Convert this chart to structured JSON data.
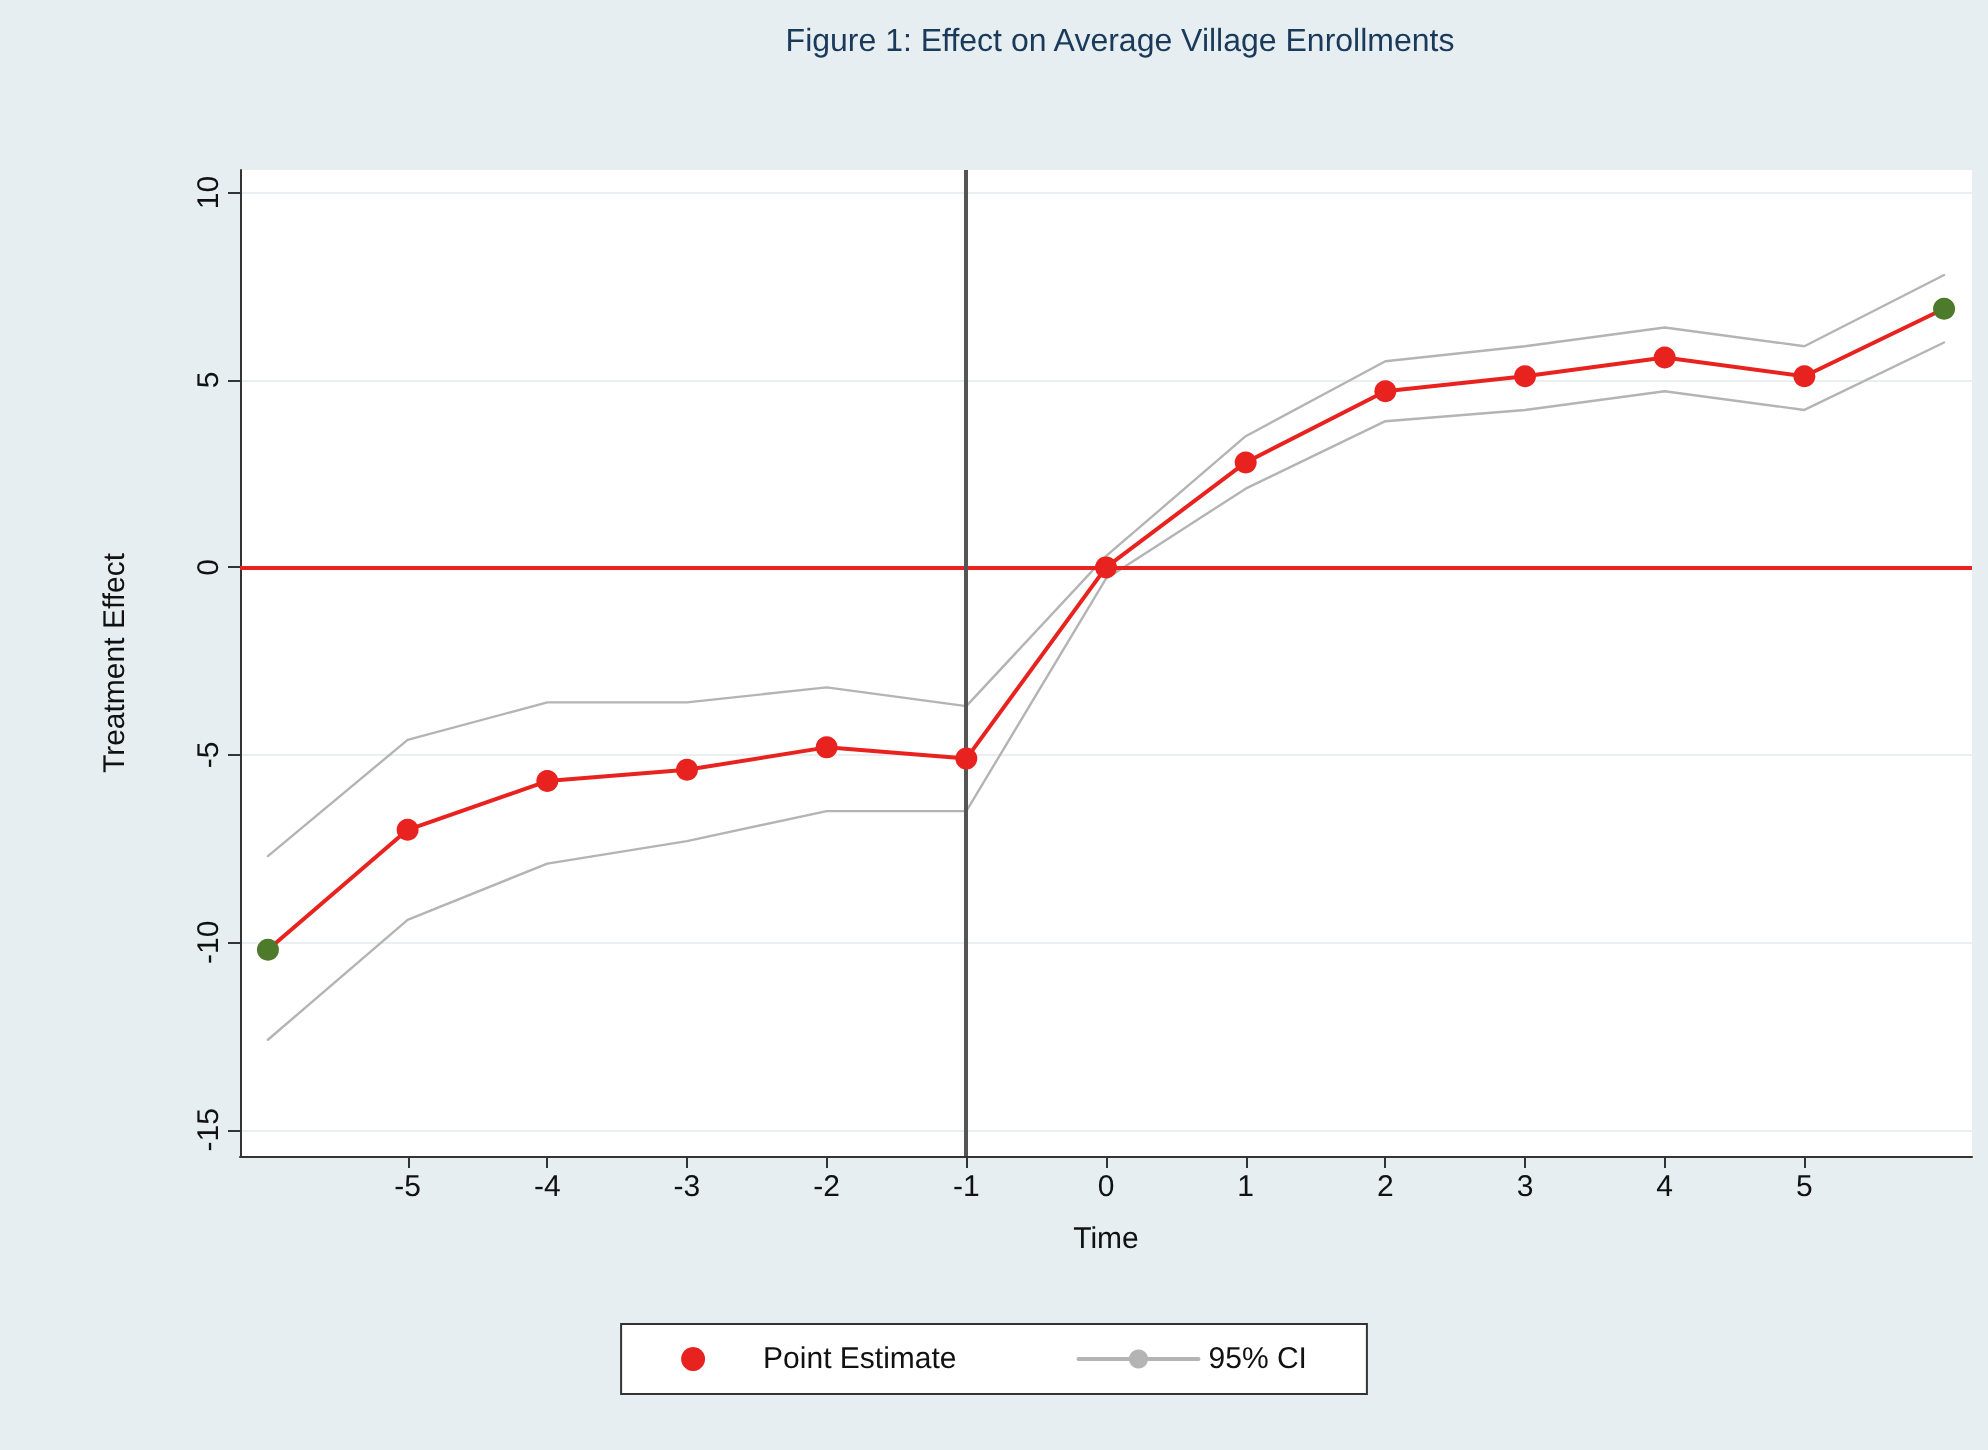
{
  "chart_data": {
    "type": "line",
    "title": "Figure 1: Effect on Average Village Enrollments",
    "xlabel": "Time",
    "ylabel": "Treatment Effect",
    "x": [
      -6,
      -5,
      -4,
      -3,
      -2,
      -1,
      0,
      1,
      2,
      3,
      4,
      5,
      6
    ],
    "series": [
      {
        "name": "Point Estimate",
        "color": "#e8231f",
        "colors": [
          "#4e7a2c",
          "#e8231f",
          "#e8231f",
          "#e8231f",
          "#e8231f",
          "#e8231f",
          "#e8231f",
          "#e8231f",
          "#e8231f",
          "#e8231f",
          "#e8231f",
          "#e8231f",
          "#4e7a2c"
        ],
        "marker": "circle",
        "values": [
          -10.2,
          -7.0,
          -5.7,
          -5.4,
          -4.8,
          -5.1,
          0,
          2.8,
          4.7,
          5.1,
          5.6,
          5.1,
          6.9
        ]
      },
      {
        "name": "95% CI",
        "color": "#b4b4b4",
        "marker": "none",
        "values": [
          -7.7,
          -4.6,
          -3.6,
          -3.6,
          -3.2,
          -3.7,
          0.3,
          3.5,
          5.5,
          5.9,
          6.4,
          5.9,
          7.8
        ]
      },
      {
        "color": "#b4b4b4",
        "marker": "none",
        "values": [
          -12.6,
          -9.4,
          -7.9,
          -7.3,
          -6.5,
          -6.5,
          -0.3,
          2.1,
          3.9,
          4.2,
          4.7,
          4.2,
          6.0
        ]
      }
    ],
    "xlim": [
      -6.2,
      6.2
    ],
    "xticks": [
      -5,
      -4,
      -3,
      -2,
      -1,
      0,
      1,
      2,
      3,
      4,
      5
    ],
    "ylim": [
      -15.7,
      10.6
    ],
    "yticks": [
      -15,
      -10,
      -5,
      0,
      5,
      10
    ],
    "ref_lines": [
      {
        "axis": "y",
        "value": 0,
        "color": "#e8231f"
      },
      {
        "axis": "x",
        "value": -1,
        "color": "#555555"
      }
    ],
    "grid": "y",
    "legend": "bottom",
    "line_style": "solid"
  }
}
